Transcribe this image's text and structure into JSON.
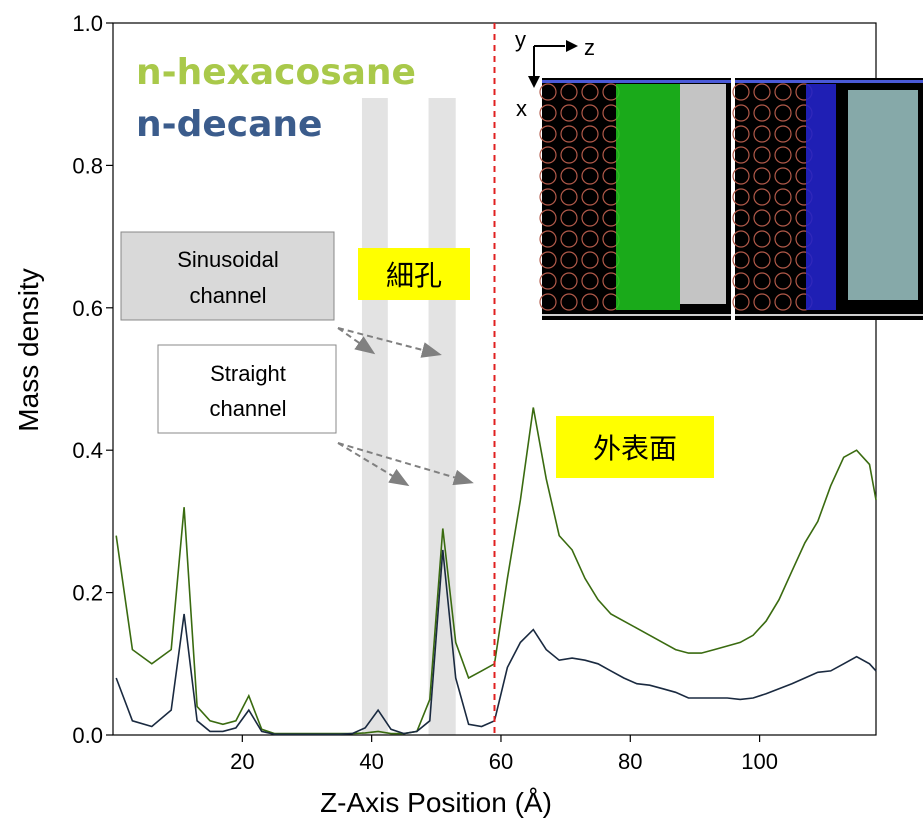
{
  "chart_data": {
    "type": "line",
    "xlabel": "Z-Axis Position (Å)",
    "ylabel": "Mass density",
    "xlim": [
      0,
      118
    ],
    "ylim": [
      0.0,
      1.0
    ],
    "xticks": [
      "20",
      "40",
      "60",
      "80",
      "100"
    ],
    "yticks": [
      "0.0",
      "0.2",
      "0.4",
      "0.6",
      "0.8",
      "1.0"
    ],
    "grid": false,
    "series": [
      {
        "name": "n-hexacosane",
        "color": "#3a6b10",
        "x": [
          0.5,
          3,
          6,
          9,
          11,
          13,
          15,
          17,
          19,
          21,
          23,
          25,
          27,
          29,
          31,
          33,
          35,
          37,
          39,
          41,
          43,
          45,
          47,
          49,
          51,
          53,
          55,
          57,
          59,
          61,
          63,
          65,
          67,
          69,
          71,
          73,
          75,
          77,
          79,
          81,
          83,
          85,
          87,
          89,
          91,
          93,
          95,
          97,
          99,
          101,
          103,
          105,
          107,
          109,
          111,
          113,
          115,
          117,
          118
        ],
        "values": [
          0.28,
          0.12,
          0.1,
          0.12,
          0.32,
          0.04,
          0.02,
          0.015,
          0.02,
          0.055,
          0.008,
          0.002,
          0.002,
          0.002,
          0.002,
          0.002,
          0.002,
          0.002,
          0.003,
          0.005,
          0.002,
          0.002,
          0.005,
          0.05,
          0.29,
          0.13,
          0.08,
          0.09,
          0.1,
          0.22,
          0.33,
          0.46,
          0.36,
          0.28,
          0.26,
          0.22,
          0.19,
          0.17,
          0.16,
          0.15,
          0.14,
          0.13,
          0.12,
          0.115,
          0.115,
          0.12,
          0.125,
          0.13,
          0.14,
          0.16,
          0.19,
          0.23,
          0.27,
          0.3,
          0.35,
          0.39,
          0.4,
          0.38,
          0.33
        ]
      },
      {
        "name": "n-decane",
        "color": "#1a2a40",
        "x": [
          0.5,
          3,
          6,
          9,
          11,
          13,
          15,
          17,
          19,
          21,
          23,
          25,
          27,
          29,
          31,
          33,
          35,
          37,
          39,
          41,
          43,
          45,
          47,
          49,
          51,
          53,
          55,
          57,
          59,
          61,
          63,
          65,
          67,
          69,
          71,
          73,
          75,
          77,
          79,
          81,
          83,
          85,
          87,
          89,
          91,
          93,
          95,
          97,
          99,
          101,
          103,
          105,
          107,
          109,
          111,
          113,
          115,
          117,
          118
        ],
        "values": [
          0.08,
          0.02,
          0.012,
          0.035,
          0.17,
          0.02,
          0.005,
          0.005,
          0.01,
          0.035,
          0.005,
          0.001,
          0.001,
          0.001,
          0.001,
          0.001,
          0.001,
          0.002,
          0.01,
          0.035,
          0.008,
          0.002,
          0.005,
          0.02,
          0.26,
          0.08,
          0.015,
          0.012,
          0.02,
          0.095,
          0.13,
          0.148,
          0.12,
          0.105,
          0.108,
          0.105,
          0.1,
          0.09,
          0.08,
          0.072,
          0.07,
          0.065,
          0.06,
          0.052,
          0.052,
          0.052,
          0.052,
          0.05,
          0.052,
          0.058,
          0.065,
          0.072,
          0.08,
          0.088,
          0.09,
          0.1,
          0.11,
          0.1,
          0.09
        ]
      }
    ],
    "shaded_bands": [
      [
        38.5,
        42.5
      ],
      [
        48.8,
        53.0
      ]
    ],
    "vertical_line_x": 59,
    "annotations": {
      "sinusoidal_label_1": "Sinusoidal",
      "sinusoidal_label_2": "channel",
      "straight_label_1": "Straight",
      "straight_label_2": "channel",
      "pore_label": "細孔",
      "outer_surface_label": "外表面"
    },
    "inset": {
      "axis_y": "y",
      "axis_z": "z",
      "axis_x": "x"
    }
  }
}
